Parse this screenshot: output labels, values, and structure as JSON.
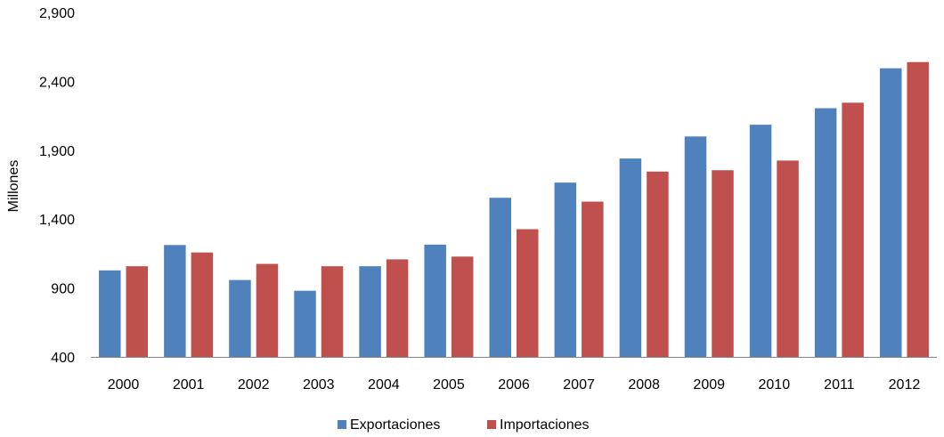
{
  "chart_data": {
    "type": "bar",
    "title": "",
    "xlabel": "",
    "ylabel": "Millones",
    "ylim": [
      400,
      2900
    ],
    "yticks": [
      400,
      900,
      1400,
      1900,
      2400,
      2900
    ],
    "ytick_labels": [
      "400",
      "900",
      "1,400",
      "1,900",
      "2,400",
      "2,900"
    ],
    "grid": false,
    "legend_position": "bottom",
    "categories": [
      "2000",
      "2001",
      "2002",
      "2003",
      "2004",
      "2005",
      "2006",
      "2007",
      "2008",
      "2009",
      "2010",
      "2011",
      "2012"
    ],
    "series": [
      {
        "name": "Exportaciones",
        "color": "#4F81BD",
        "values": [
          1028,
          1212,
          958,
          880,
          1058,
          1215,
          1555,
          1665,
          1840,
          2000,
          2085,
          2205,
          2495
        ]
      },
      {
        "name": "Importaciones",
        "color": "#C0504D",
        "values": [
          1058,
          1158,
          1075,
          1058,
          1108,
          1128,
          1327,
          1527,
          1745,
          1755,
          1825,
          2245,
          2540
        ]
      }
    ]
  }
}
